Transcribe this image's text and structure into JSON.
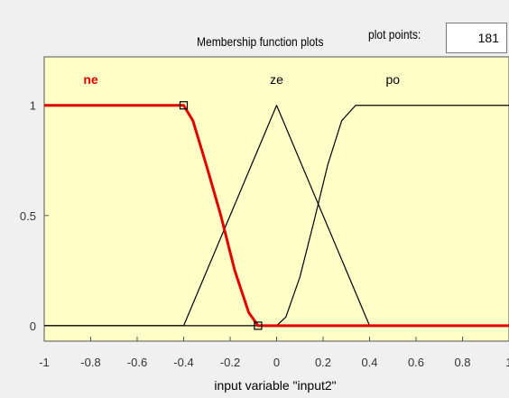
{
  "header": {
    "title": "Membership function plots",
    "plot_points_label": "plot points:",
    "plot_points_value": "181"
  },
  "colors": {
    "plot_background": "#ffffc8",
    "selected_mf": "#e00000",
    "mf_line": "#000000"
  },
  "chart_data": {
    "type": "line",
    "xlabel": "input variable \"input2\"",
    "xlim": [
      -1,
      1
    ],
    "ylim": [
      -0.07,
      1.22
    ],
    "x_ticks": [
      "-1",
      "-0.8",
      "-0.6",
      "-0.4",
      "-0.2",
      "0",
      "0.2",
      "0.4",
      "0.6",
      "0.8",
      "1"
    ],
    "y_ticks": [
      "0",
      "0.5",
      "1"
    ],
    "series": [
      {
        "name": "ne",
        "selected": true,
        "points": [
          [
            -1,
            1
          ],
          [
            -0.4,
            1
          ],
          [
            -0.36,
            0.93
          ],
          [
            -0.3,
            0.72
          ],
          [
            -0.24,
            0.5
          ],
          [
            -0.18,
            0.25
          ],
          [
            -0.12,
            0.06
          ],
          [
            -0.08,
            0
          ],
          [
            1,
            0
          ]
        ]
      },
      {
        "name": "ze",
        "selected": false,
        "points": [
          [
            -1,
            0
          ],
          [
            -0.4,
            0
          ],
          [
            0,
            1
          ],
          [
            0.4,
            0
          ],
          [
            1,
            0
          ]
        ]
      },
      {
        "name": "po",
        "selected": false,
        "points": [
          [
            -1,
            0
          ],
          [
            0,
            0
          ],
          [
            0.04,
            0.04
          ],
          [
            0.1,
            0.22
          ],
          [
            0.16,
            0.47
          ],
          [
            0.22,
            0.73
          ],
          [
            0.28,
            0.93
          ],
          [
            0.34,
            1
          ],
          [
            1,
            1
          ]
        ]
      }
    ]
  }
}
